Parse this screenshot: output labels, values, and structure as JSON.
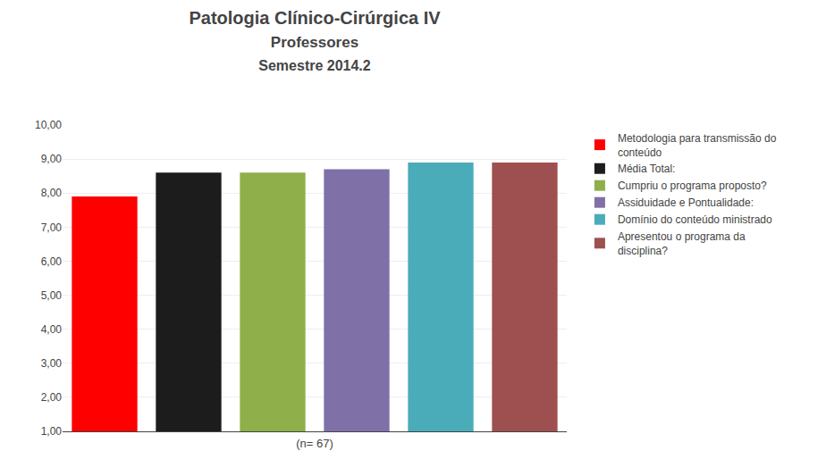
{
  "chart_data": {
    "type": "bar",
    "title": "Patologia Clínico-Cirúrgica IV",
    "subtitle": "Professores\nSemestre 2014.2",
    "xlabel": "(n= 67)",
    "categories": [
      "Metodologia para transmissão do\n  conteúdo",
      "Média Total:",
      "Cumpriu o programa proposto?",
      "Assiduidade e Pontualidade:",
      "Domínio do conteúdo ministrado",
      "Apresentou o programa da\n  disciplina?"
    ],
    "values": [
      7.9,
      8.6,
      8.6,
      8.7,
      8.9,
      8.9
    ],
    "colors": [
      "#FF0000",
      "#1C1C1C",
      "#8FAF4A",
      "#8070A8",
      "#4AACB8",
      "#9E5050"
    ],
    "ylim": [
      1.0,
      10.0
    ],
    "yticks": [
      {
        "value": 1.0,
        "label": "1,00"
      },
      {
        "value": 2.0,
        "label": "2,00"
      },
      {
        "value": 3.0,
        "label": "3,00"
      },
      {
        "value": 4.0,
        "label": "4,00"
      },
      {
        "value": 5.0,
        "label": "5,00"
      },
      {
        "value": 6.0,
        "label": "6,00"
      },
      {
        "value": 7.0,
        "label": "7,00"
      },
      {
        "value": 8.0,
        "label": "8,00"
      },
      {
        "value": 9.0,
        "label": "9,00"
      },
      {
        "value": 10.0,
        "label": "10,00"
      }
    ],
    "grid": true,
    "legend": "right",
    "tick_labels": "y"
  }
}
